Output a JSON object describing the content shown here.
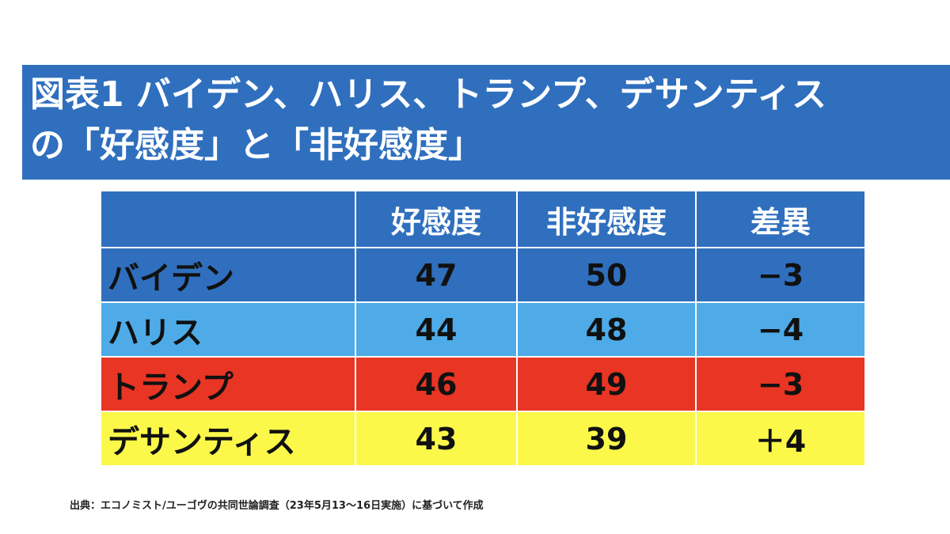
{
  "title": {
    "line1": "図表1 バイデン、ハリス、トランプ、デサンティス",
    "line2": "の「好感度」と「非好感度」"
  },
  "table": {
    "headers": [
      "",
      "好感度",
      "非好感度",
      "差異"
    ],
    "rows": [
      {
        "name": "バイデン",
        "favorable": "47",
        "unfavorable": "50",
        "difference": "−3",
        "color": "#2f6fbe"
      },
      {
        "name": "ハリス",
        "favorable": "44",
        "unfavorable": "48",
        "difference": "−4",
        "color": "#4eabe8"
      },
      {
        "name": "トランプ",
        "favorable": "46",
        "unfavorable": "49",
        "difference": "−3",
        "color": "#e83524"
      },
      {
        "name": "デサンティス",
        "favorable": "43",
        "unfavorable": "39",
        "difference": "＋4",
        "color": "#fbf84a"
      }
    ]
  },
  "footnote": "出典：エコノミスト/ユーゴヴの共同世論調査（23年5月13〜16日実施）に基づいて作成"
}
